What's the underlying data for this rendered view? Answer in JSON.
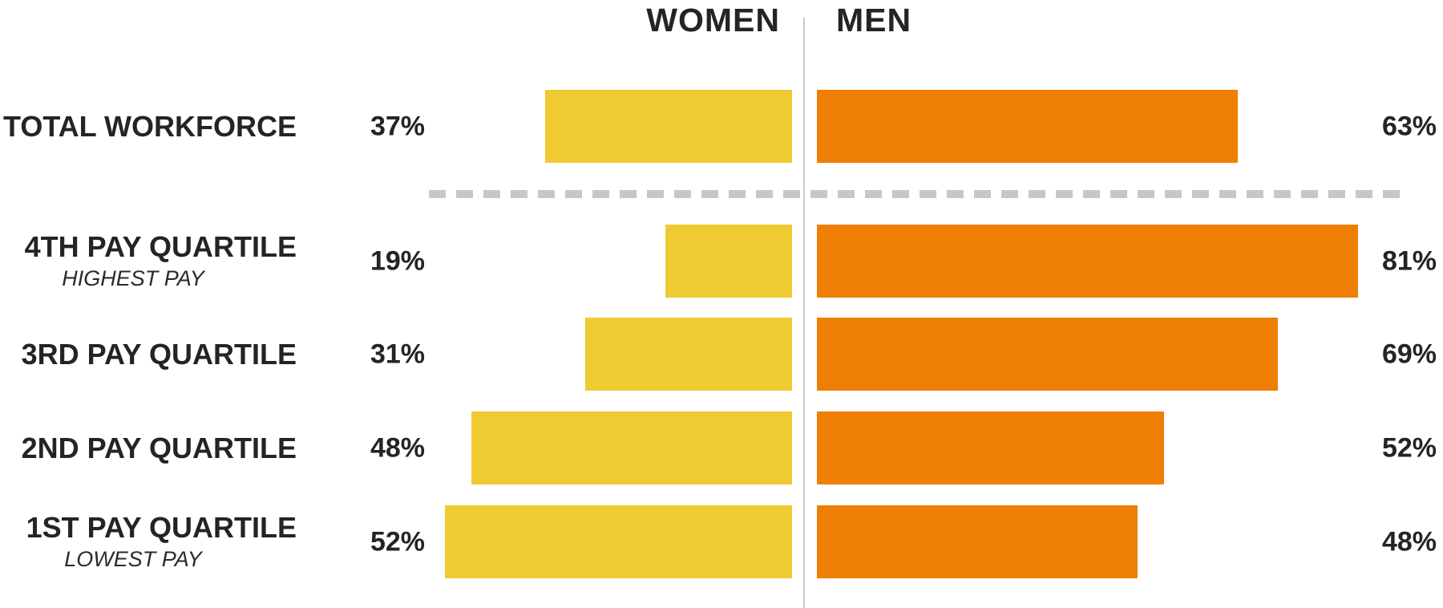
{
  "headers": {
    "women": "WOMEN",
    "men": "MEN"
  },
  "colors": {
    "women_bar": "#F0CA33",
    "men_bar": "#EE7F04",
    "text": "#242424",
    "divider_line": "#CBCBCB",
    "dashed_line": "#C7C7C7"
  },
  "chart_data": {
    "type": "bar",
    "variant": "diverging-horizontal-butterfly",
    "legend_position": "top-center",
    "x_range_percent": [
      0,
      100
    ],
    "categories": [
      "TOTAL WORKFORCE",
      "4TH PAY QUARTILE",
      "3RD PAY QUARTILE",
      "2ND PAY QUARTILE",
      "1ST PAY QUARTILE"
    ],
    "category_sublabels": [
      "",
      "HIGHEST PAY",
      "",
      "",
      "LOWEST PAY"
    ],
    "separator_after_category": "TOTAL WORKFORCE",
    "series": [
      {
        "name": "WOMEN",
        "color": "#F0CA33",
        "values": [
          37,
          19,
          31,
          48,
          52
        ],
        "labels": [
          "37%",
          "19%",
          "31%",
          "48%",
          "52%"
        ]
      },
      {
        "name": "MEN",
        "color": "#EE7F04",
        "values": [
          63,
          81,
          69,
          52,
          48
        ],
        "labels": [
          "63%",
          "81%",
          "69%",
          "52%",
          "48%"
        ]
      }
    ]
  }
}
